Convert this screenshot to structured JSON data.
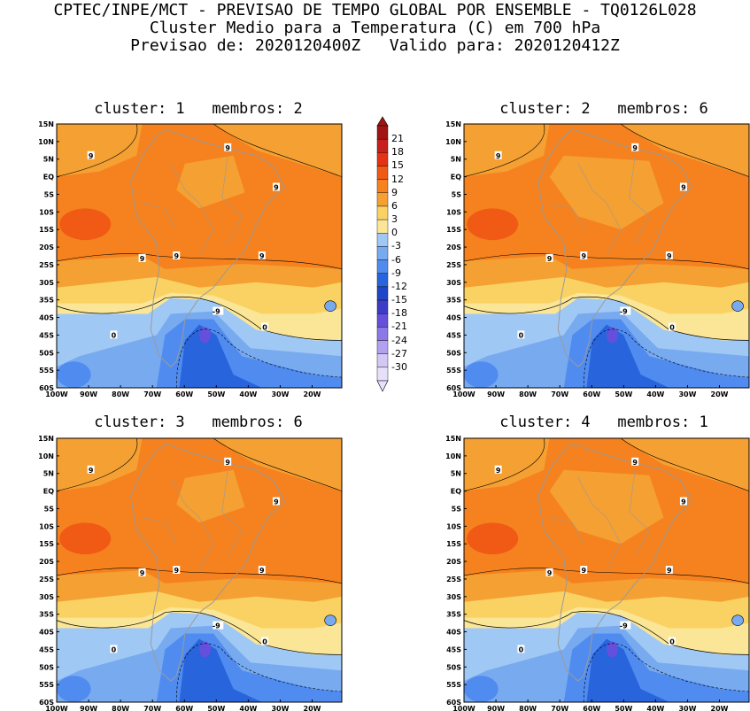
{
  "header": {
    "line1": "CPTEC/INPE/MCT - PREVISAO DE TEMPO GLOBAL POR ENSEMBLE - TQ0126L028",
    "line2": "Cluster Medio para a Temperatura (C) em 700 hPa",
    "line3": "Previsao de: 2020120400Z   Valido para: 2020120412Z"
  },
  "panels": [
    {
      "title": "cluster: 1   membros: 2"
    },
    {
      "title": "cluster: 2   membros: 6"
    },
    {
      "title": "cluster: 3   membros: 6"
    },
    {
      "title": "cluster: 4   membros: 1"
    }
  ],
  "axes": {
    "lat_labels": [
      "15N",
      "10N",
      "5N",
      "EQ",
      "5S",
      "10S",
      "15S",
      "20S",
      "25S",
      "30S",
      "35S",
      "40S",
      "45S",
      "50S",
      "55S",
      "60S"
    ],
    "lon_labels": [
      "100W",
      "90W",
      "80W",
      "70W",
      "60W",
      "50W",
      "40W",
      "30W",
      "20W"
    ]
  },
  "colorbar": {
    "labels": [
      "21",
      "18",
      "15",
      "12",
      "9",
      "6",
      "3",
      "0",
      "-3",
      "-6",
      "-9",
      "-12",
      "-15",
      "-18",
      "-21",
      "-24",
      "-27",
      "-30"
    ],
    "colors": [
      "#a01414",
      "#c81e1e",
      "#e63214",
      "#f05a14",
      "#f5821e",
      "#f5a032",
      "#fad264",
      "#fae696",
      "#a0c8f5",
      "#78aaf0",
      "#508cf0",
      "#2864dc",
      "#1e46c8",
      "#3c3cc8",
      "#6450dc",
      "#8c78e6",
      "#b4a0f0",
      "#d2c8f5",
      "#e6e0fa"
    ]
  },
  "contour_labels": {
    "nine": "9",
    "zero": "0",
    "minus_nine": "-9"
  }
}
